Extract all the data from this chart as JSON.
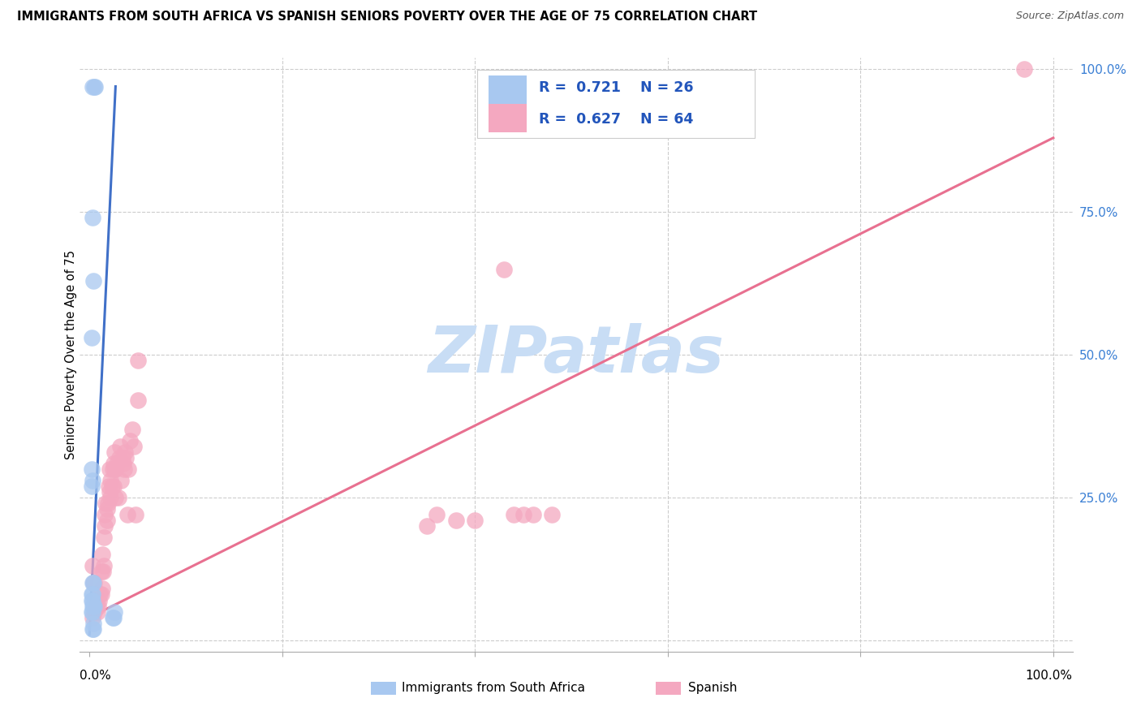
{
  "title": "IMMIGRANTS FROM SOUTH AFRICA VS SPANISH SENIORS POVERTY OVER THE AGE OF 75 CORRELATION CHART",
  "source": "Source: ZipAtlas.com",
  "ylabel": "Seniors Poverty Over the Age of 75",
  "legend_label1": "Immigrants from South Africa",
  "legend_label2": "Spanish",
  "R1": 0.721,
  "N1": 26,
  "R2": 0.627,
  "N2": 64,
  "color_blue": "#A8C8F0",
  "color_pink": "#F4A8C0",
  "line_color_blue": "#4070C8",
  "line_color_pink": "#E87090",
  "watermark": "ZIPatlas",
  "watermark_color": "#C8DDF5",
  "blue_x": [
    0.003,
    0.006,
    0.005,
    0.003,
    0.004,
    0.002,
    0.002,
    0.003,
    0.002,
    0.003,
    0.004,
    0.002,
    0.003,
    0.002,
    0.003,
    0.003,
    0.004,
    0.005,
    0.003,
    0.002,
    0.024,
    0.025,
    0.026,
    0.004,
    0.003,
    0.004
  ],
  "blue_y": [
    0.97,
    0.97,
    0.97,
    0.74,
    0.63,
    0.53,
    0.3,
    0.28,
    0.27,
    0.1,
    0.1,
    0.08,
    0.08,
    0.07,
    0.07,
    0.06,
    0.06,
    0.06,
    0.05,
    0.05,
    0.04,
    0.04,
    0.05,
    0.03,
    0.02,
    0.02
  ],
  "pink_x": [
    0.003,
    0.005,
    0.007,
    0.008,
    0.009,
    0.01,
    0.011,
    0.012,
    0.012,
    0.013,
    0.013,
    0.014,
    0.015,
    0.015,
    0.016,
    0.016,
    0.017,
    0.018,
    0.018,
    0.019,
    0.02,
    0.021,
    0.021,
    0.022,
    0.022,
    0.023,
    0.024,
    0.025,
    0.025,
    0.026,
    0.026,
    0.027,
    0.027,
    0.028,
    0.03,
    0.031,
    0.032,
    0.033,
    0.034,
    0.035,
    0.036,
    0.037,
    0.038,
    0.039,
    0.04,
    0.042,
    0.044,
    0.046,
    0.048,
    0.05,
    0.05,
    0.35,
    0.36,
    0.38,
    0.4,
    0.43,
    0.44,
    0.45,
    0.46,
    0.48,
    0.97,
    0.003,
    0.004,
    0.005
  ],
  "pink_y": [
    0.04,
    0.05,
    0.06,
    0.05,
    0.06,
    0.07,
    0.08,
    0.08,
    0.12,
    0.09,
    0.15,
    0.12,
    0.13,
    0.18,
    0.2,
    0.22,
    0.24,
    0.21,
    0.23,
    0.24,
    0.27,
    0.26,
    0.3,
    0.25,
    0.28,
    0.27,
    0.3,
    0.27,
    0.31,
    0.3,
    0.33,
    0.25,
    0.3,
    0.31,
    0.25,
    0.32,
    0.34,
    0.28,
    0.32,
    0.31,
    0.3,
    0.33,
    0.32,
    0.22,
    0.3,
    0.35,
    0.37,
    0.34,
    0.22,
    0.42,
    0.49,
    0.2,
    0.22,
    0.21,
    0.21,
    0.65,
    0.22,
    0.22,
    0.22,
    0.22,
    1.0,
    0.13,
    0.1,
    0.1
  ],
  "blue_line_x": [
    0.0,
    0.027
  ],
  "blue_line_y": [
    0.01,
    0.97
  ],
  "pink_line_x": [
    0.0,
    1.0
  ],
  "pink_line_y": [
    0.04,
    0.88
  ],
  "xlim": [
    0.0,
    1.0
  ],
  "ylim": [
    0.0,
    1.0
  ],
  "ytick_positions": [
    0.25,
    0.5,
    0.75,
    1.0
  ],
  "ytick_labels": [
    "25.0%",
    "50.0%",
    "75.0%",
    "100.0%"
  ],
  "xtick_left": "0.0%",
  "xtick_right": "100.0%"
}
